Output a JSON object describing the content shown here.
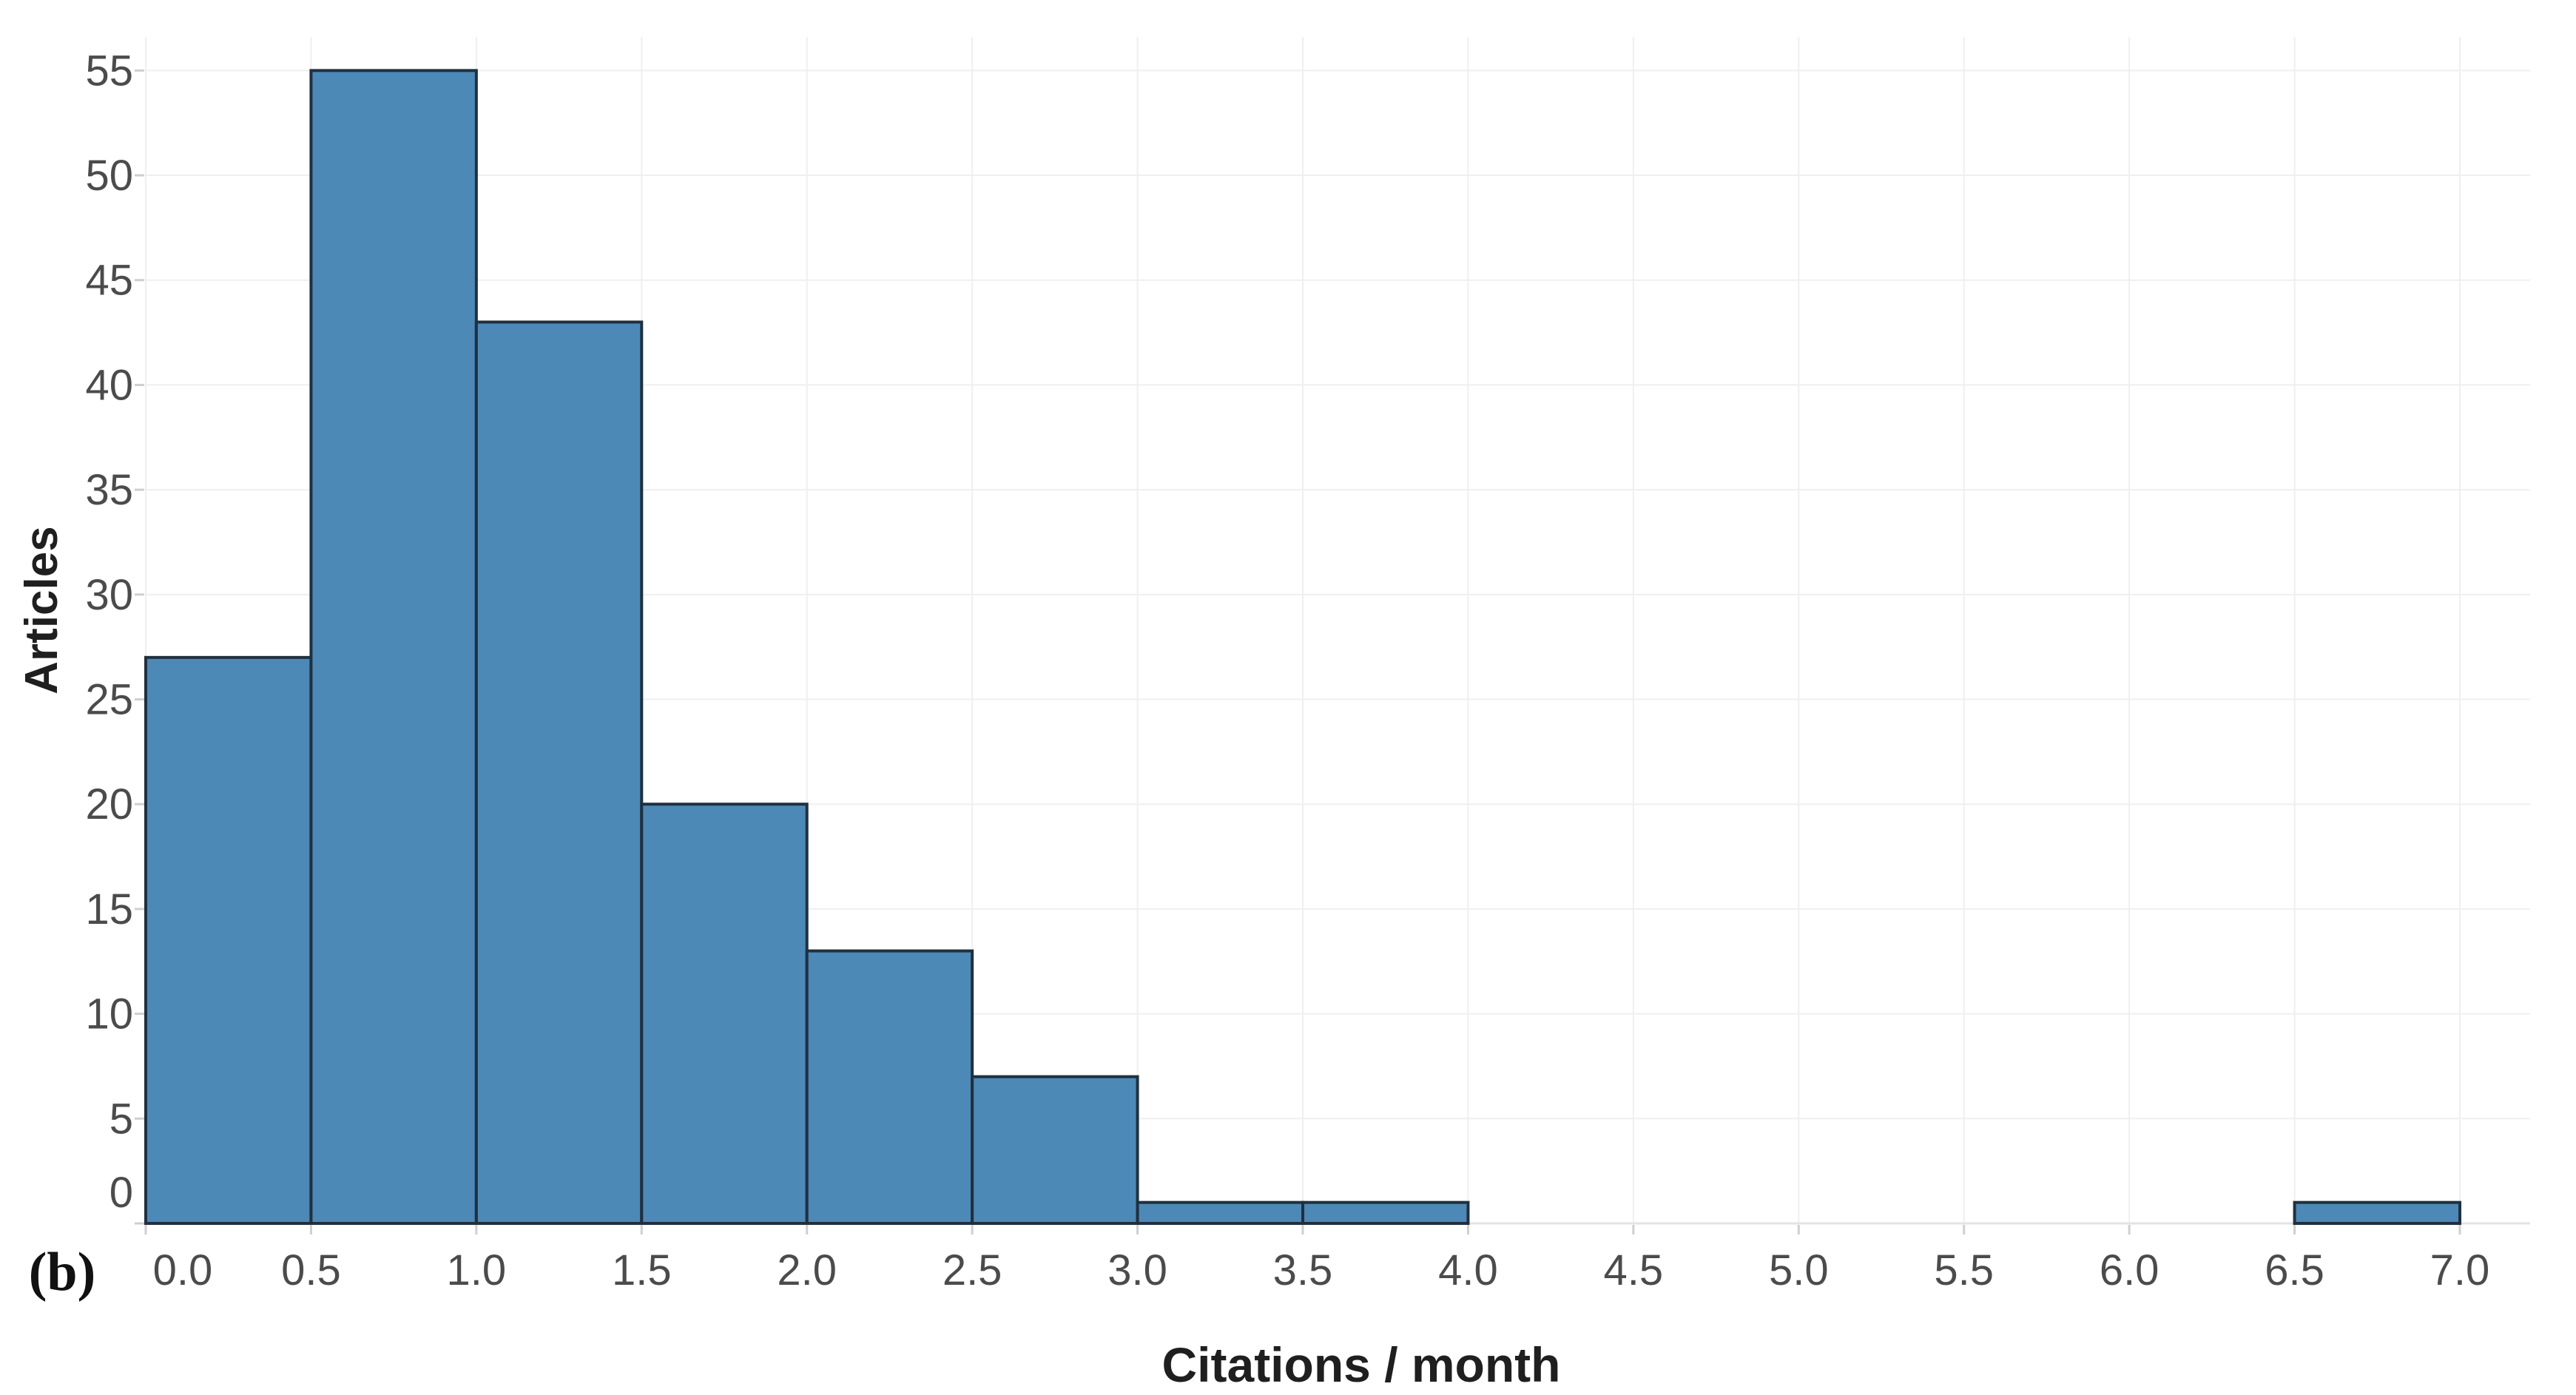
{
  "chart_data": {
    "type": "bar",
    "subtype": "histogram",
    "title": "",
    "panel_label": "(b)",
    "xlabel": "Citations / month",
    "ylabel": "Articles",
    "bin_width": 0.5,
    "bin_edges": [
      0.0,
      0.5,
      1.0,
      1.5,
      2.0,
      2.5,
      3.0,
      3.5,
      4.0,
      4.5,
      5.0,
      5.5,
      6.0,
      6.5,
      7.0
    ],
    "counts": [
      27,
      55,
      43,
      20,
      13,
      7,
      1,
      1,
      0,
      0,
      0,
      0,
      0,
      1
    ],
    "x_tick_labels": [
      "0.0",
      "0.5",
      "1.0",
      "1.5",
      "2.0",
      "2.5",
      "3.0",
      "3.5",
      "4.0",
      "4.5",
      "5.0",
      "5.5",
      "6.0",
      "6.5",
      "7.0"
    ],
    "y_ticks": [
      0,
      5,
      10,
      15,
      20,
      25,
      30,
      35,
      40,
      45,
      50,
      55
    ],
    "xlim": [
      0,
      7
    ],
    "ylim": [
      0,
      56.6
    ],
    "grid": true,
    "legend": "none",
    "colors": {
      "bar_fill": "#4C89B7",
      "bar_border": "#20303F",
      "gridline": "#EFEFEF",
      "axis_line": "#E3E3E3",
      "tick_mark": "#CFCFCF",
      "tick_label": "#4B4B4B",
      "axis_title": "#1F1F1F",
      "background": "#FFFFFF"
    }
  }
}
